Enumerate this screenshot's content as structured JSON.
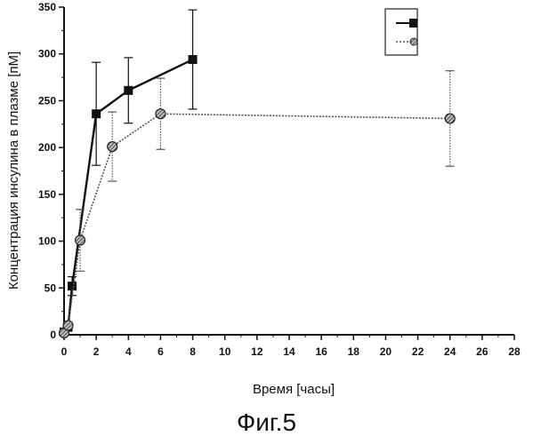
{
  "chart_data": {
    "type": "line",
    "xlabel": "Время [часы]",
    "ylabel": "Концентрация инсулина в плазме [пМ]",
    "xlim": [
      0,
      28
    ],
    "ylim": [
      0,
      350
    ],
    "x_ticks": [
      0,
      2,
      4,
      6,
      8,
      10,
      12,
      14,
      16,
      18,
      20,
      22,
      24,
      26,
      28
    ],
    "y_ticks": [
      0,
      50,
      100,
      150,
      200,
      250,
      300,
      350
    ],
    "grid": false,
    "legend": {
      "position": "top-right",
      "entries_legible": false
    },
    "series": [
      {
        "marker": "square",
        "color": "#111111",
        "line_style": "solid",
        "points": [
          {
            "x": 0,
            "y": 3,
            "err": 0
          },
          {
            "x": 0.25,
            "y": 8,
            "err": 0
          },
          {
            "x": 0.5,
            "y": 52,
            "err": 10
          },
          {
            "x": 2,
            "y": 236,
            "err": 55
          },
          {
            "x": 4,
            "y": 261,
            "err": 35
          },
          {
            "x": 8,
            "y": 294,
            "err": 53
          }
        ]
      },
      {
        "marker": "hatched-circle",
        "color": "#555555",
        "line_style": "dotted",
        "points": [
          {
            "x": 0,
            "y": 2,
            "err": 0
          },
          {
            "x": 0.25,
            "y": 10,
            "err": 0
          },
          {
            "x": 1,
            "y": 101,
            "err": 33
          },
          {
            "x": 3,
            "y": 201,
            "err": 37
          },
          {
            "x": 6,
            "y": 236,
            "err": 38
          },
          {
            "x": 24,
            "y": 231,
            "err": 51
          }
        ]
      }
    ]
  },
  "caption": "Фиг.5"
}
